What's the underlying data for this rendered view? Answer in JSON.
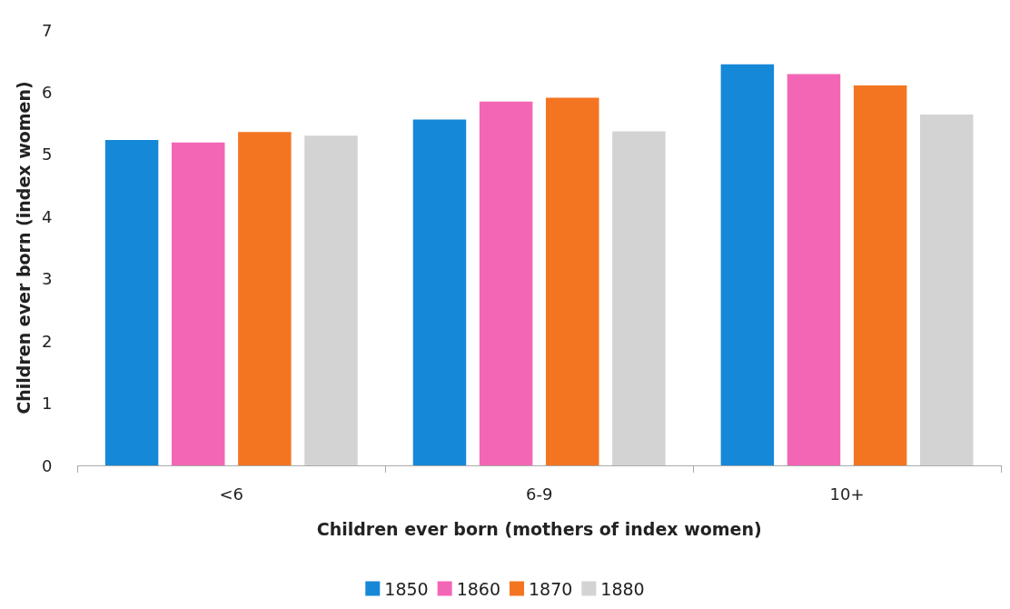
{
  "chart_data": {
    "type": "bar",
    "xlabel": "Children ever born (mothers of index women)",
    "ylabel": "Children ever born (index women)",
    "categories": [
      "<6",
      "6-9",
      "10+"
    ],
    "series": [
      {
        "name": "1850",
        "color": "#1688d8",
        "values": [
          5.23,
          5.56,
          6.45
        ]
      },
      {
        "name": "1860",
        "color": "#f266b5",
        "values": [
          5.19,
          5.85,
          6.29
        ]
      },
      {
        "name": "1870",
        "color": "#f47521",
        "values": [
          5.36,
          5.91,
          6.11
        ]
      },
      {
        "name": "1880",
        "color": "#d3d3d3",
        "values": [
          5.3,
          5.37,
          5.64
        ]
      }
    ],
    "ylim": [
      0,
      7
    ],
    "yticks": [
      0,
      1,
      2,
      3,
      4,
      5,
      6,
      7
    ],
    "grid": false,
    "legend": "bottom"
  }
}
